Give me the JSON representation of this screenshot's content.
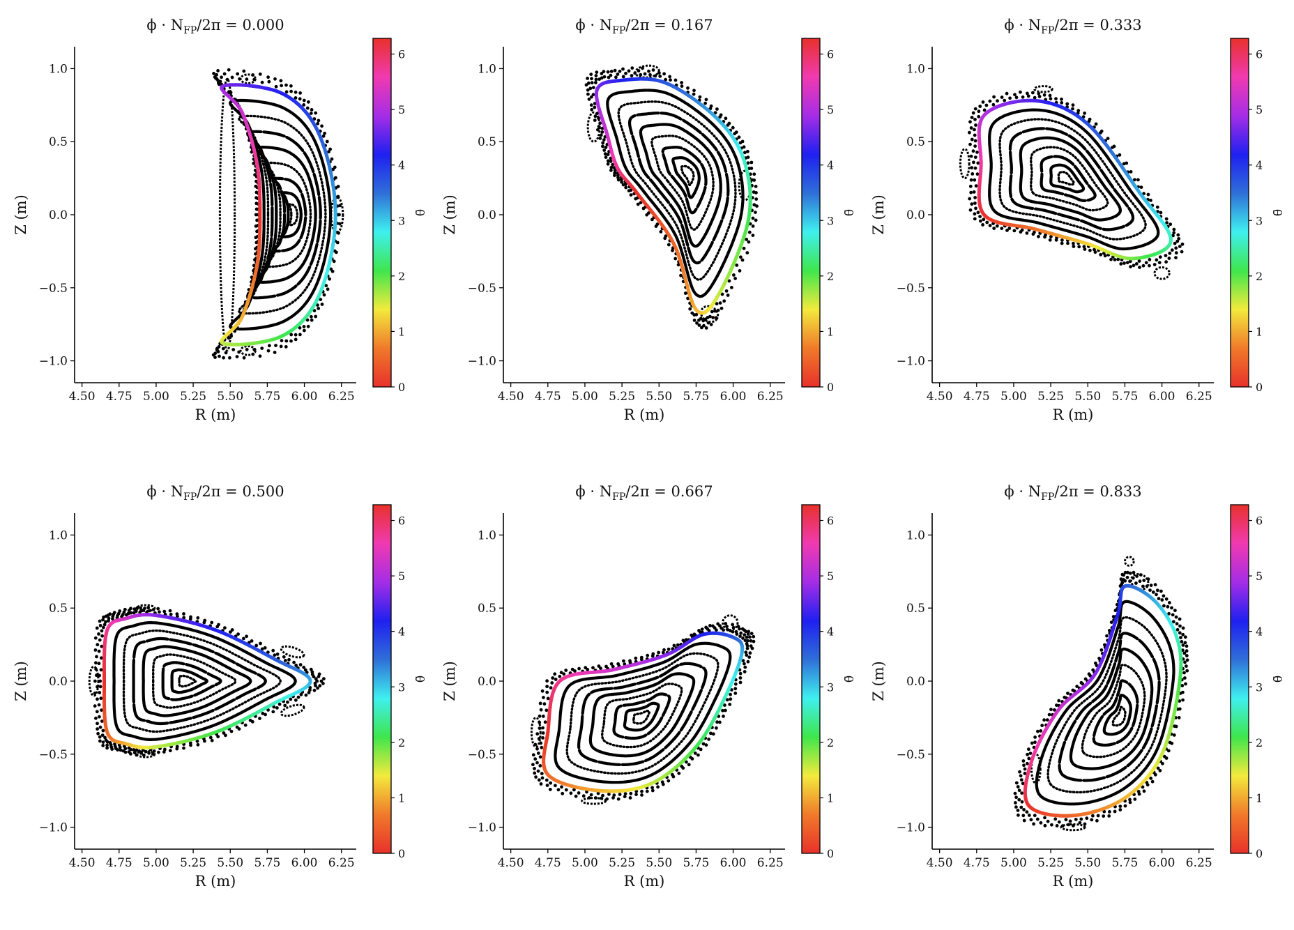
{
  "figure": {
    "colorbar_colors": [
      "#e8312b",
      "#f07a2a",
      "#f3ea3d",
      "#3fe64c",
      "#3ff0ef",
      "#2f6fd8",
      "#1f20f0",
      "#a52de6",
      "#f03ab0",
      "#e8312b"
    ],
    "island_color": "#000000",
    "background": "#ffffff"
  },
  "chart_data": [
    {
      "type": "scatter",
      "title": "ϕ · N_FP/2π = 0.000",
      "title_parts": {
        "lhs": "ϕ · N",
        "sub": "FP",
        "rhs": "/2π = 0.000"
      },
      "xlabel": "R (m)",
      "ylabel": "Z (m)",
      "xlim": [
        4.45,
        6.35
      ],
      "ylim": [
        -1.15,
        1.15
      ],
      "xticks": [
        "4.50",
        "4.75",
        "5.00",
        "5.25",
        "5.50",
        "5.75",
        "6.00",
        "6.25"
      ],
      "yticks": [
        "−1.0",
        "−0.5",
        "0.0",
        "0.5",
        "1.0"
      ],
      "colorbar": {
        "label": "θ̄",
        "range": [
          0,
          6.283
        ],
        "ticks": [
          "0",
          "1",
          "2",
          "3",
          "4",
          "5",
          "6"
        ]
      },
      "boundary": {
        "color_by": "theta",
        "points": [
          [
            5.7,
            0.0
          ],
          [
            5.68,
            -0.35
          ],
          [
            5.58,
            -0.7
          ],
          [
            5.45,
            -0.88
          ],
          [
            5.85,
            -0.83
          ],
          [
            6.1,
            -0.55
          ],
          [
            6.21,
            0.0
          ],
          [
            6.1,
            0.55
          ],
          [
            5.85,
            0.83
          ],
          [
            5.45,
            0.88
          ],
          [
            5.58,
            0.7
          ],
          [
            5.68,
            0.35
          ]
        ]
      },
      "magnetic_axis": [
        5.93,
        0.0
      ],
      "islands": [
        [
          5.48,
          0.0,
          0.05,
          0.93,
          0
        ],
        [
          5.62,
          0.93,
          0.05,
          0.03,
          0
        ],
        [
          5.62,
          -0.93,
          0.05,
          0.03,
          0
        ],
        [
          6.22,
          0.0,
          0.04,
          0.12,
          0
        ]
      ]
    },
    {
      "type": "scatter",
      "title": "ϕ · N_FP/2π = 0.167",
      "title_parts": {
        "lhs": "ϕ · N",
        "sub": "FP",
        "rhs": "/2π = 0.167"
      },
      "xlabel": "R (m)",
      "ylabel": "Z (m)",
      "xlim": [
        4.45,
        6.35
      ],
      "ylim": [
        -1.15,
        1.15
      ],
      "xticks": [
        "4.50",
        "4.75",
        "5.00",
        "5.25",
        "5.50",
        "5.75",
        "6.00",
        "6.25"
      ],
      "yticks": [
        "−1.0",
        "−0.5",
        "0.0",
        "0.5",
        "1.0"
      ],
      "colorbar": {
        "label": "θ̄",
        "range": [
          0,
          6.283
        ],
        "ticks": [
          "0",
          "1",
          "2",
          "3",
          "4",
          "5",
          "6"
        ]
      },
      "boundary": {
        "color_by": "theta",
        "points": [
          [
            5.35,
            0.15
          ],
          [
            5.6,
            -0.2
          ],
          [
            5.75,
            -0.65
          ],
          [
            5.9,
            -0.55
          ],
          [
            6.1,
            -0.05
          ],
          [
            6.08,
            0.35
          ],
          [
            5.9,
            0.65
          ],
          [
            5.55,
            0.9
          ],
          [
            5.25,
            0.92
          ],
          [
            5.08,
            0.85
          ],
          [
            5.15,
            0.55
          ],
          [
            5.22,
            0.32
          ]
        ]
      },
      "magnetic_axis": [
        5.7,
        0.28
      ],
      "islands": [
        [
          5.06,
          0.6,
          0.04,
          0.1,
          0
        ],
        [
          5.84,
          -0.68,
          0.06,
          0.05,
          -0.6
        ],
        [
          5.42,
          0.98,
          0.08,
          0.04,
          0.1
        ],
        [
          6.08,
          0.2,
          0.04,
          0.1,
          0
        ]
      ]
    },
    {
      "type": "scatter",
      "title": "ϕ · N_FP/2π = 0.333",
      "title_parts": {
        "lhs": "ϕ · N",
        "sub": "FP",
        "rhs": "/2π = 0.333"
      },
      "xlabel": "R (m)",
      "ylabel": "Z (m)",
      "xlim": [
        4.45,
        6.35
      ],
      "ylim": [
        -1.15,
        1.15
      ],
      "xticks": [
        "4.50",
        "4.75",
        "5.00",
        "5.25",
        "5.50",
        "5.75",
        "6.00",
        "6.25"
      ],
      "yticks": [
        "−1.0",
        "−0.5",
        "0.0",
        "0.5",
        "1.0"
      ],
      "colorbar": {
        "label": "θ̄",
        "range": [
          0,
          6.283
        ],
        "ticks": [
          "0",
          "1",
          "2",
          "3",
          "4",
          "5",
          "6"
        ]
      },
      "boundary": {
        "color_by": "theta",
        "points": [
          [
            4.8,
            0.0
          ],
          [
            5.15,
            -0.1
          ],
          [
            5.5,
            -0.2
          ],
          [
            5.8,
            -0.3
          ],
          [
            6.06,
            -0.18
          ],
          [
            5.85,
            0.15
          ],
          [
            5.5,
            0.62
          ],
          [
            5.15,
            0.78
          ],
          [
            4.8,
            0.68
          ],
          [
            4.78,
            0.35
          ]
        ]
      },
      "magnetic_axis": [
        5.35,
        0.25
      ],
      "islands": [
        [
          4.67,
          0.35,
          0.03,
          0.1,
          0
        ],
        [
          6.0,
          -0.4,
          0.05,
          0.04,
          0
        ],
        [
          5.2,
          0.86,
          0.06,
          0.02,
          0
        ]
      ]
    },
    {
      "type": "scatter",
      "title": "ϕ · N_FP/2π = 0.500",
      "title_parts": {
        "lhs": "ϕ · N",
        "sub": "FP",
        "rhs": "/2π = 0.500"
      },
      "xlabel": "R (m)",
      "ylabel": "Z (m)",
      "xlim": [
        4.45,
        6.35
      ],
      "ylim": [
        -1.15,
        1.15
      ],
      "xticks": [
        "4.50",
        "4.75",
        "5.00",
        "5.25",
        "5.50",
        "5.75",
        "6.00",
        "6.25"
      ],
      "yticks": [
        "−1.0",
        "−0.5",
        "0.0",
        "0.5",
        "1.0"
      ],
      "colorbar": {
        "label": "θ̄",
        "range": [
          0,
          6.283
        ],
        "ticks": [
          "0",
          "1",
          "2",
          "3",
          "4",
          "5",
          "6"
        ]
      },
      "boundary": {
        "color_by": "theta",
        "points": [
          [
            4.65,
            0.0
          ],
          [
            4.67,
            -0.35
          ],
          [
            4.8,
            -0.43
          ],
          [
            5.0,
            -0.45
          ],
          [
            5.4,
            -0.35
          ],
          [
            5.8,
            -0.15
          ],
          [
            6.04,
            0.0
          ],
          [
            5.8,
            0.15
          ],
          [
            5.4,
            0.35
          ],
          [
            5.0,
            0.45
          ],
          [
            4.8,
            0.43
          ],
          [
            4.67,
            0.35
          ]
        ]
      },
      "magnetic_axis": [
        5.2,
        0.0
      ],
      "islands": [
        [
          4.58,
          0.0,
          0.03,
          0.1,
          0
        ],
        [
          5.92,
          0.2,
          0.08,
          0.03,
          -0.3
        ],
        [
          5.92,
          -0.2,
          0.08,
          0.03,
          0.3
        ],
        [
          4.93,
          0.5,
          0.06,
          0.02,
          0
        ],
        [
          4.93,
          -0.5,
          0.06,
          0.02,
          0
        ]
      ]
    },
    {
      "type": "scatter",
      "title": "ϕ · N_FP/2π = 0.667",
      "title_parts": {
        "lhs": "ϕ · N",
        "sub": "FP",
        "rhs": "/2π = 0.667"
      },
      "xlabel": "R (m)",
      "ylabel": "Z (m)",
      "xlim": [
        4.45,
        6.35
      ],
      "ylim": [
        -1.15,
        1.15
      ],
      "xticks": [
        "4.50",
        "4.75",
        "5.00",
        "5.25",
        "5.50",
        "5.75",
        "6.00",
        "6.25"
      ],
      "yticks": [
        "−1.0",
        "−0.5",
        "0.0",
        "0.5",
        "1.0"
      ],
      "colorbar": {
        "label": "θ̄",
        "range": [
          0,
          6.283
        ],
        "ticks": [
          "0",
          "1",
          "2",
          "3",
          "4",
          "5",
          "6"
        ]
      },
      "boundary": {
        "color_by": "theta",
        "points": [
          [
            4.75,
            -0.35
          ],
          [
            4.75,
            -0.64
          ],
          [
            5.1,
            -0.75
          ],
          [
            5.45,
            -0.7
          ],
          [
            5.75,
            -0.45
          ],
          [
            5.95,
            -0.1
          ],
          [
            6.06,
            0.2
          ],
          [
            6.0,
            0.3
          ],
          [
            5.8,
            0.32
          ],
          [
            5.55,
            0.18
          ],
          [
            5.2,
            0.08
          ],
          [
            4.83,
            0.0
          ]
        ]
      },
      "magnetic_axis": [
        5.38,
        -0.25
      ],
      "islands": [
        [
          4.67,
          -0.35,
          0.03,
          0.1,
          0
        ],
        [
          5.98,
          0.4,
          0.05,
          0.05,
          0
        ],
        [
          5.06,
          -0.82,
          0.08,
          0.02,
          0
        ]
      ]
    },
    {
      "type": "scatter",
      "title": "ϕ · N_FP/2π = 0.833",
      "title_parts": {
        "lhs": "ϕ · N",
        "sub": "FP",
        "rhs": "/2π = 0.833"
      },
      "xlabel": "R (m)",
      "ylabel": "Z (m)",
      "xlim": [
        4.45,
        6.35
      ],
      "ylim": [
        -1.15,
        1.15
      ],
      "xticks": [
        "4.50",
        "4.75",
        "5.00",
        "5.25",
        "5.50",
        "5.75",
        "6.00",
        "6.25"
      ],
      "yticks": [
        "−1.0",
        "−0.5",
        "0.0",
        "0.5",
        "1.0"
      ],
      "colorbar": {
        "label": "θ̄",
        "range": [
          0,
          6.283
        ],
        "ticks": [
          "0",
          "1",
          "2",
          "3",
          "4",
          "5",
          "6"
        ]
      },
      "boundary": {
        "color_by": "theta",
        "points": [
          [
            5.1,
            -0.85
          ],
          [
            5.4,
            -0.92
          ],
          [
            5.75,
            -0.8
          ],
          [
            6.0,
            -0.5
          ],
          [
            6.12,
            0.0
          ],
          [
            6.1,
            0.3
          ],
          [
            5.95,
            0.55
          ],
          [
            5.75,
            0.65
          ],
          [
            5.7,
            0.45
          ],
          [
            5.55,
            0.05
          ],
          [
            5.3,
            -0.2
          ],
          [
            5.12,
            -0.55
          ]
        ]
      },
      "magnetic_axis": [
        5.72,
        -0.25
      ],
      "islands": [
        [
          5.15,
          -0.6,
          0.03,
          0.1,
          0
        ],
        [
          5.85,
          0.68,
          0.06,
          0.05,
          -0.5
        ],
        [
          5.4,
          -1.0,
          0.08,
          0.02,
          0
        ],
        [
          5.78,
          0.82,
          0.03,
          0.03,
          0
        ]
      ]
    }
  ]
}
